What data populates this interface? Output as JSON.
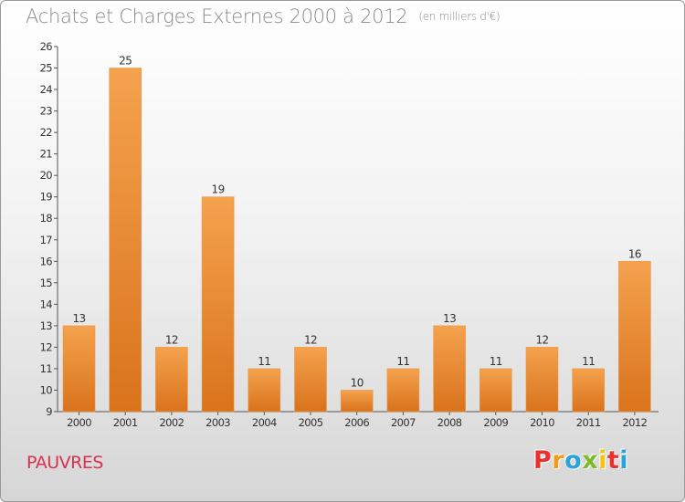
{
  "chart_data": {
    "type": "bar",
    "title": "Achats et Charges Externes 2000 à 2012",
    "unit_note": "(en milliers d'€)",
    "categories": [
      "2000",
      "2001",
      "2002",
      "2003",
      "2004",
      "2005",
      "2006",
      "2007",
      "2008",
      "2009",
      "2010",
      "2011",
      "2012"
    ],
    "values": [
      13,
      25,
      12,
      19,
      11,
      12,
      10,
      11,
      13,
      11,
      12,
      11,
      16
    ],
    "ylim": [
      9,
      26
    ],
    "yticks": [
      9,
      10,
      11,
      12,
      13,
      14,
      15,
      16,
      17,
      18,
      19,
      20,
      21,
      22,
      23,
      24,
      25,
      26
    ],
    "grid": false,
    "bar_color_top": "#f5a24e",
    "bar_color_bottom": "#d9731c",
    "xlabel": "",
    "ylabel": ""
  },
  "footer": {
    "commune": "PAUVRES",
    "logo_letters": [
      "P",
      "r",
      "o",
      "x",
      "i",
      "t",
      "i"
    ],
    "logo_colors": [
      "#e8322f",
      "#f39a16",
      "#2aa3d8",
      "#7cbb2b",
      "#f5c30f",
      "#e8322f",
      "#2aa3d8"
    ]
  },
  "colors": {
    "commune_text": "#d9314e",
    "title_text": "#8a8a8a"
  }
}
